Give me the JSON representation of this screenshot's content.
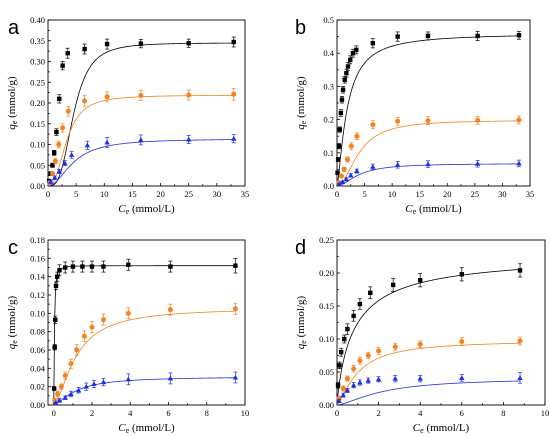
{
  "chart_data": [
    {
      "panel": "a",
      "type": "scatter",
      "xlabel": "C",
      "xlabel_sub": "e",
      "xlabel_unit": " (mmol/L)",
      "ylabel": "q",
      "ylabel_sub": "e",
      "ylabel_unit": " (mmol/g)",
      "xlim": [
        0,
        35
      ],
      "ylim": [
        0,
        0.4
      ],
      "xticks": [
        0,
        5,
        10,
        15,
        20,
        25,
        30,
        35
      ],
      "yticks": [
        0,
        0.05,
        0.1,
        0.15,
        0.2,
        0.25,
        0.3,
        0.35,
        0.4
      ],
      "yticks_text": [
        "0.00",
        "0.05",
        "0.10",
        "0.15",
        "0.20",
        "0.25",
        "0.30",
        "0.35",
        "0.40"
      ],
      "series": [
        {
          "color": "#000000",
          "marker": "square",
          "x": [
            0.2,
            0.5,
            0.8,
            1.1,
            1.5,
            2.0,
            2.6,
            3.5,
            6.5,
            10.5,
            16.5,
            25.0,
            33.0
          ],
          "y": [
            0.012,
            0.03,
            0.05,
            0.08,
            0.13,
            0.21,
            0.29,
            0.32,
            0.33,
            0.342,
            0.343,
            0.344,
            0.347
          ],
          "err": [
            0.004,
            0.004,
            0.005,
            0.006,
            0.008,
            0.01,
            0.01,
            0.012,
            0.012,
            0.012,
            0.01,
            0.01,
            0.012
          ],
          "fit": {
            "qmax": 0.345,
            "K": 0.22,
            "n": 3.2
          }
        },
        {
          "color": "#F5821F",
          "marker": "circle",
          "x": [
            0.3,
            0.8,
            1.3,
            1.9,
            2.6,
            3.6,
            6.5,
            10.5,
            16.5,
            25.0,
            33.0
          ],
          "y": [
            0.008,
            0.03,
            0.06,
            0.1,
            0.14,
            0.18,
            0.205,
            0.215,
            0.218,
            0.219,
            0.221
          ],
          "err": [
            0.004,
            0.004,
            0.006,
            0.008,
            0.01,
            0.012,
            0.013,
            0.012,
            0.012,
            0.012,
            0.014
          ],
          "fit": {
            "qmax": 0.219,
            "K": 0.3,
            "n": 2.5
          }
        },
        {
          "color": "#1F2FE6",
          "marker": "triangle",
          "x": [
            0.5,
            1.2,
            2.0,
            3.0,
            4.2,
            7.0,
            10.5,
            16.5,
            25.0,
            33.0
          ],
          "y": [
            0.01,
            0.02,
            0.035,
            0.055,
            0.075,
            0.098,
            0.105,
            0.111,
            0.112,
            0.114
          ],
          "err": [
            0.003,
            0.004,
            0.005,
            0.006,
            0.008,
            0.01,
            0.012,
            0.012,
            0.01,
            0.01
          ],
          "fit": {
            "qmax": 0.114,
            "K": 0.22,
            "n": 2.0
          }
        }
      ]
    },
    {
      "panel": "b",
      "type": "scatter",
      "xlabel": "C",
      "xlabel_sub": "e",
      "xlabel_unit": " (mmol/L)",
      "ylabel": "q",
      "ylabel_sub": "e",
      "ylabel_unit": " (mmol/g)",
      "xlim": [
        0,
        35
      ],
      "ylim": [
        0,
        0.5
      ],
      "xticks": [
        0,
        5,
        10,
        15,
        20,
        25,
        30,
        35
      ],
      "yticks": [
        0,
        0.1,
        0.2,
        0.3,
        0.4,
        0.5
      ],
      "yticks_text": [
        "0.0",
        "0.1",
        "0.2",
        "0.3",
        "0.4",
        "0.5"
      ],
      "series": [
        {
          "color": "#000000",
          "marker": "square",
          "x": [
            0.1,
            0.2,
            0.35,
            0.5,
            0.7,
            0.9,
            1.1,
            1.4,
            1.7,
            2.0,
            2.4,
            2.9,
            3.5,
            6.5,
            11.0,
            16.5,
            25.5,
            33.0
          ],
          "y": [
            0.04,
            0.08,
            0.12,
            0.17,
            0.22,
            0.26,
            0.29,
            0.32,
            0.34,
            0.36,
            0.38,
            0.4,
            0.41,
            0.43,
            0.45,
            0.452,
            0.452,
            0.454
          ],
          "err": [
            0.005,
            0.006,
            0.008,
            0.008,
            0.01,
            0.01,
            0.01,
            0.01,
            0.012,
            0.012,
            0.012,
            0.012,
            0.012,
            0.014,
            0.014,
            0.012,
            0.014,
            0.012
          ],
          "fit": {
            "qmax": 0.46,
            "K": 0.55,
            "n": 1.4
          }
        },
        {
          "color": "#F5821F",
          "marker": "circle",
          "x": [
            0.3,
            0.8,
            1.3,
            1.9,
            2.6,
            3.6,
            6.5,
            11.0,
            16.5,
            25.5,
            33.0
          ],
          "y": [
            0.01,
            0.03,
            0.05,
            0.08,
            0.12,
            0.15,
            0.185,
            0.195,
            0.197,
            0.198,
            0.199
          ],
          "err": [
            0.004,
            0.005,
            0.006,
            0.008,
            0.01,
            0.01,
            0.012,
            0.012,
            0.012,
            0.012,
            0.012
          ],
          "fit": {
            "qmax": 0.199,
            "K": 0.25,
            "n": 2.0
          }
        },
        {
          "color": "#1F2FE6",
          "marker": "triangle",
          "x": [
            0.4,
            1.0,
            1.7,
            2.5,
            3.6,
            6.5,
            11.0,
            16.5,
            25.5,
            33.0
          ],
          "y": [
            0.005,
            0.012,
            0.02,
            0.032,
            0.045,
            0.058,
            0.064,
            0.066,
            0.067,
            0.068
          ],
          "err": [
            0.002,
            0.003,
            0.004,
            0.005,
            0.006,
            0.008,
            0.01,
            0.01,
            0.01,
            0.01
          ],
          "fit": {
            "qmax": 0.068,
            "K": 0.25,
            "n": 1.8
          }
        }
      ]
    },
    {
      "panel": "c",
      "type": "scatter",
      "xlabel": "C",
      "xlabel_sub": "e",
      "xlabel_unit": " (mmol/L)",
      "ylabel": "q",
      "ylabel_sub": "e",
      "ylabel_unit": " (mmol/g)",
      "xlim": [
        -0.3,
        10
      ],
      "ylim": [
        0,
        0.18
      ],
      "xticks": [
        0,
        2,
        4,
        6,
        8,
        10
      ],
      "yticks": [
        0,
        0.02,
        0.04,
        0.06,
        0.08,
        0.1,
        0.12,
        0.14,
        0.16,
        0.18
      ],
      "yticks_text": [
        "0.00",
        "0.02",
        "0.04",
        "0.06",
        "0.08",
        "0.10",
        "0.12",
        "0.14",
        "0.16",
        "0.18"
      ],
      "series": [
        {
          "color": "#000000",
          "marker": "square",
          "x": [
            0.02,
            0.05,
            0.08,
            0.12,
            0.18,
            0.3,
            0.6,
            1.0,
            1.5,
            2.0,
            2.6,
            3.9,
            6.1,
            9.5
          ],
          "y": [
            0.018,
            0.063,
            0.093,
            0.13,
            0.14,
            0.147,
            0.15,
            0.151,
            0.151,
            0.151,
            0.151,
            0.153,
            0.151,
            0.152
          ],
          "err": [
            0.002,
            0.003,
            0.004,
            0.004,
            0.005,
            0.006,
            0.006,
            0.006,
            0.006,
            0.006,
            0.006,
            0.006,
            0.006,
            0.008
          ],
          "fit": {
            "qmax": 0.152,
            "K": 28,
            "n": 1.6
          }
        },
        {
          "color": "#F5821F",
          "marker": "circle",
          "x": [
            0.05,
            0.2,
            0.4,
            0.6,
            0.9,
            1.2,
            1.6,
            2.0,
            2.6,
            3.9,
            6.1,
            9.5
          ],
          "y": [
            0.005,
            0.012,
            0.02,
            0.032,
            0.045,
            0.06,
            0.075,
            0.085,
            0.093,
            0.1,
            0.104,
            0.105
          ],
          "err": [
            0.002,
            0.003,
            0.003,
            0.004,
            0.005,
            0.006,
            0.006,
            0.006,
            0.006,
            0.006,
            0.006,
            0.006
          ],
          "fit": {
            "qmax": 0.106,
            "K": 0.85,
            "n": 1.6
          }
        },
        {
          "color": "#1F2FE6",
          "marker": "triangle",
          "x": [
            0.1,
            0.3,
            0.6,
            0.9,
            1.3,
            1.7,
            2.1,
            2.6,
            3.9,
            6.1,
            9.5
          ],
          "y": [
            0.002,
            0.005,
            0.008,
            0.012,
            0.016,
            0.02,
            0.023,
            0.025,
            0.028,
            0.029,
            0.03
          ],
          "err": [
            0.001,
            0.002,
            0.002,
            0.003,
            0.003,
            0.004,
            0.004,
            0.004,
            0.006,
            0.006,
            0.006
          ],
          "fit": {
            "qmax": 0.031,
            "K": 0.85,
            "n": 1.5
          }
        }
      ]
    },
    {
      "panel": "d",
      "type": "scatter",
      "xlabel": "C",
      "xlabel_sub": "e",
      "xlabel_unit": " (mmol/L)",
      "ylabel": "q",
      "ylabel_sub": "e",
      "ylabel_unit": " (mmol/g)",
      "xlim": [
        0,
        10
      ],
      "ylim": [
        0,
        0.25
      ],
      "xticks": [
        0,
        2,
        4,
        6,
        8,
        10
      ],
      "yticks": [
        0,
        0.05,
        0.1,
        0.15,
        0.2,
        0.25
      ],
      "yticks_text": [
        "0.00",
        "0.05",
        "0.10",
        "0.15",
        "0.20",
        "0.25"
      ],
      "series": [
        {
          "color": "#000000",
          "marker": "square",
          "x": [
            0.05,
            0.12,
            0.2,
            0.35,
            0.5,
            0.8,
            1.1,
            1.6,
            2.7,
            4.0,
            6.0,
            8.8
          ],
          "y": [
            0.03,
            0.06,
            0.08,
            0.1,
            0.115,
            0.135,
            0.153,
            0.17,
            0.182,
            0.189,
            0.198,
            0.204
          ],
          "err": [
            0.004,
            0.005,
            0.006,
            0.006,
            0.008,
            0.008,
            0.008,
            0.009,
            0.01,
            0.01,
            0.01,
            0.01
          ],
          "fit": {
            "qmax": 0.23,
            "K": 1.2,
            "n": 0.9
          }
        },
        {
          "color": "#F5821F",
          "marker": "circle",
          "x": [
            0.1,
            0.3,
            0.5,
            0.8,
            1.1,
            1.5,
            2.0,
            2.8,
            4.0,
            6.0,
            8.8
          ],
          "y": [
            0.01,
            0.025,
            0.04,
            0.055,
            0.067,
            0.075,
            0.082,
            0.088,
            0.092,
            0.096,
            0.097
          ],
          "err": [
            0.003,
            0.004,
            0.004,
            0.005,
            0.005,
            0.005,
            0.005,
            0.005,
            0.005,
            0.006,
            0.006
          ],
          "fit": {
            "qmax": 0.098,
            "K": 1.0,
            "n": 1.4
          }
        },
        {
          "color": "#1F2FE6",
          "marker": "triangle",
          "x": [
            0.1,
            0.3,
            0.5,
            0.8,
            1.1,
            1.5,
            2.0,
            2.8,
            4.0,
            6.0,
            8.8
          ],
          "y": [
            0.006,
            0.015,
            0.022,
            0.03,
            0.034,
            0.037,
            0.039,
            0.04,
            0.04,
            0.041,
            0.041
          ],
          "err": [
            0.002,
            0.003,
            0.003,
            0.004,
            0.004,
            0.004,
            0.004,
            0.005,
            0.005,
            0.005,
            0.008
          ],
          "fit": {
            "qmax": 0.041,
            "K": 0.45,
            "n": 1.5
          }
        }
      ]
    }
  ]
}
